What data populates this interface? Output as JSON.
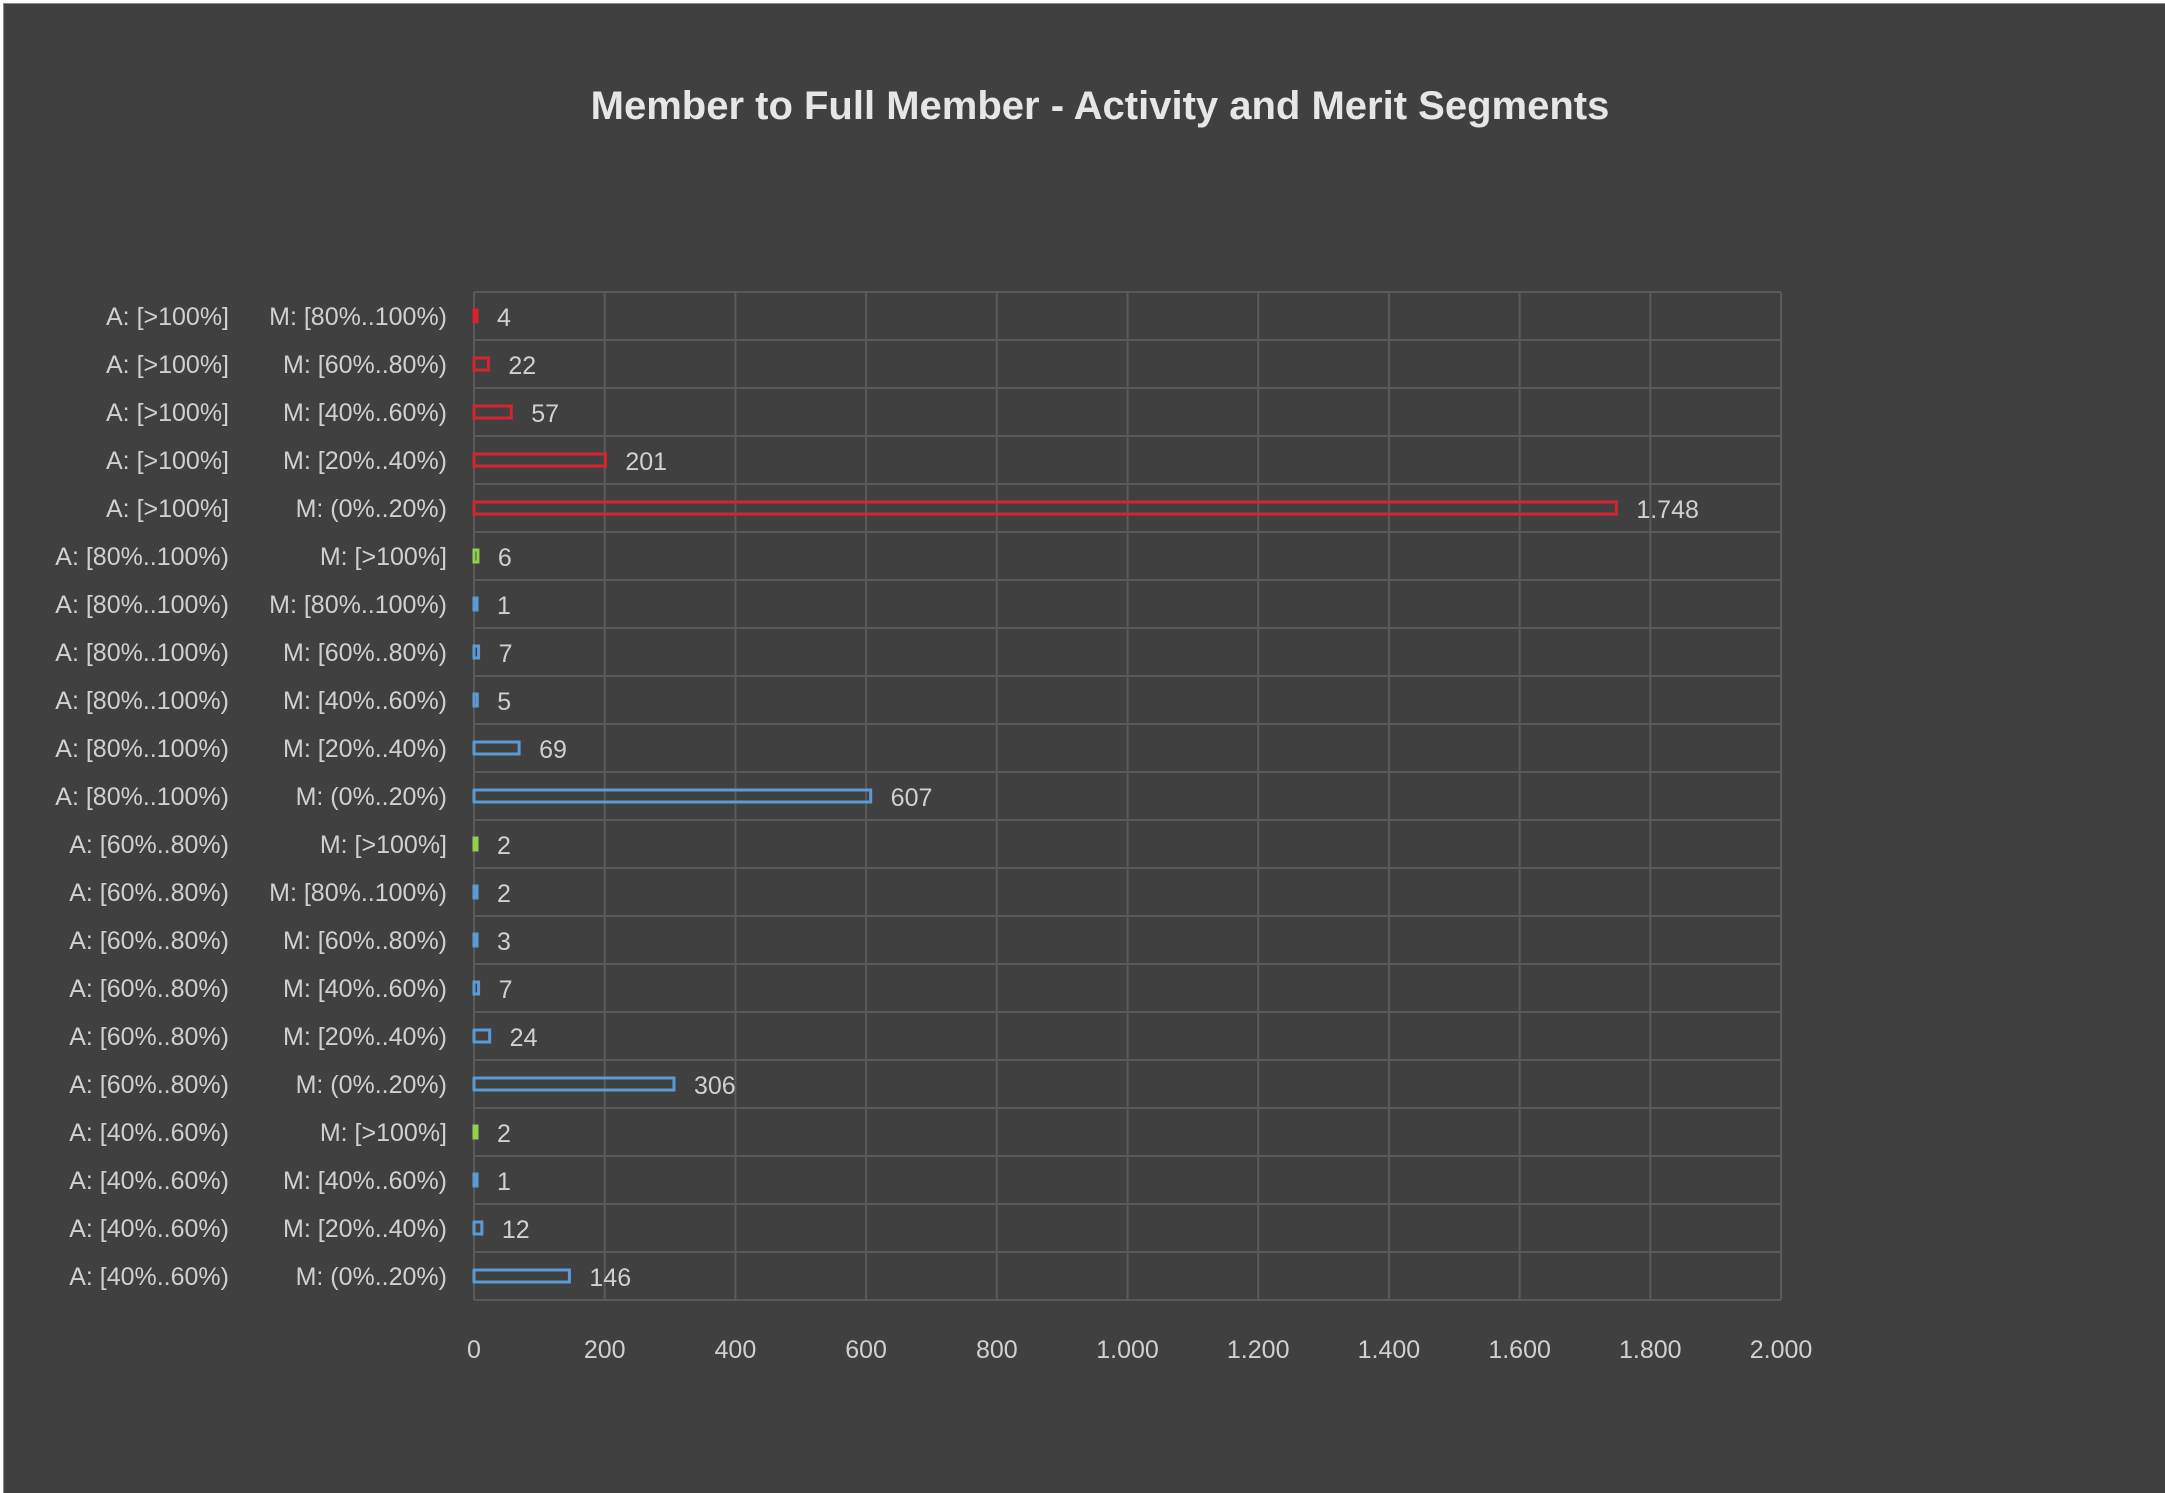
{
  "chart_data": {
    "type": "bar",
    "orientation": "horizontal",
    "title": "Member to Full Member  - Activity and Merit Segments",
    "xlabel": "",
    "ylabel": "",
    "xlim": [
      0,
      2000
    ],
    "grid": true,
    "legend": "none",
    "x_ticks": [
      0,
      200,
      400,
      600,
      800,
      1000,
      1200,
      1400,
      1600,
      1800,
      2000
    ],
    "x_tick_labels": [
      "0",
      "200",
      "400",
      "600",
      "800",
      "1.000",
      "1.200",
      "1.400",
      "1.600",
      "1.800",
      "2.000"
    ],
    "colors": {
      "red": "#d9222f",
      "blue": "#5b9bd5",
      "green": "#92d050",
      "grid": "#5a5a5a",
      "background": "#404040"
    },
    "bars": [
      {
        "activity": "A:  [>100%]",
        "merit": "M: [80%..100%)",
        "value": 4,
        "label": "4",
        "color": "red"
      },
      {
        "activity": "A:  [>100%]",
        "merit": "M: [60%..80%)",
        "value": 22,
        "label": "22",
        "color": "red"
      },
      {
        "activity": "A:  [>100%]",
        "merit": "M: [40%..60%)",
        "value": 57,
        "label": "57",
        "color": "red"
      },
      {
        "activity": "A:  [>100%]",
        "merit": "M: [20%..40%)",
        "value": 201,
        "label": "201",
        "color": "red"
      },
      {
        "activity": "A:  [>100%]",
        "merit": "M: (0%..20%)",
        "value": 1748,
        "label": "1.748",
        "color": "red"
      },
      {
        "activity": "A:  [80%..100%)",
        "merit": "M: [>100%]",
        "value": 6,
        "label": "6",
        "color": "green"
      },
      {
        "activity": "A:  [80%..100%)",
        "merit": "M: [80%..100%)",
        "value": 1,
        "label": "1",
        "color": "blue"
      },
      {
        "activity": "A:  [80%..100%)",
        "merit": "M: [60%..80%)",
        "value": 7,
        "label": "7",
        "color": "blue"
      },
      {
        "activity": "A:  [80%..100%)",
        "merit": "M: [40%..60%)",
        "value": 5,
        "label": "5",
        "color": "blue"
      },
      {
        "activity": "A:  [80%..100%)",
        "merit": "M: [20%..40%)",
        "value": 69,
        "label": "69",
        "color": "blue"
      },
      {
        "activity": "A:  [80%..100%)",
        "merit": "M: (0%..20%)",
        "value": 607,
        "label": "607",
        "color": "blue"
      },
      {
        "activity": "A:  [60%..80%)",
        "merit": "M: [>100%]",
        "value": 2,
        "label": "2",
        "color": "green"
      },
      {
        "activity": "A:  [60%..80%)",
        "merit": "M: [80%..100%)",
        "value": 2,
        "label": "2",
        "color": "blue"
      },
      {
        "activity": "A:  [60%..80%)",
        "merit": "M: [60%..80%)",
        "value": 3,
        "label": "3",
        "color": "blue"
      },
      {
        "activity": "A:  [60%..80%)",
        "merit": "M: [40%..60%)",
        "value": 7,
        "label": "7",
        "color": "blue"
      },
      {
        "activity": "A:  [60%..80%)",
        "merit": "M: [20%..40%)",
        "value": 24,
        "label": "24",
        "color": "blue"
      },
      {
        "activity": "A:  [60%..80%)",
        "merit": "M: (0%..20%)",
        "value": 306,
        "label": "306",
        "color": "blue"
      },
      {
        "activity": "A:  [40%..60%)",
        "merit": "M: [>100%]",
        "value": 2,
        "label": "2",
        "color": "green"
      },
      {
        "activity": "A:  [40%..60%)",
        "merit": "M: [40%..60%)",
        "value": 1,
        "label": "1",
        "color": "blue"
      },
      {
        "activity": "A:  [40%..60%)",
        "merit": "M: [20%..40%)",
        "value": 12,
        "label": "12",
        "color": "blue"
      },
      {
        "activity": "A:  [40%..60%)",
        "merit": "M: (0%..20%)",
        "value": 146,
        "label": "146",
        "color": "blue"
      }
    ]
  }
}
